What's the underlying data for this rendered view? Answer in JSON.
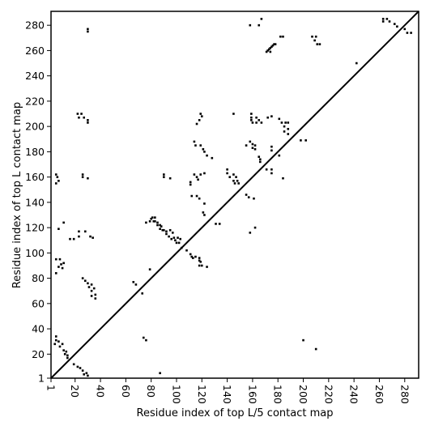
{
  "chart_data": {
    "type": "scatter",
    "title": "",
    "xlabel": "Residue index of top L/5 contact map",
    "ylabel": "Residue index of top L contact map",
    "xlim": [
      1,
      291
    ],
    "ylim": [
      1,
      291
    ],
    "x_ticks": [
      1,
      20,
      40,
      60,
      80,
      100,
      120,
      140,
      160,
      180,
      200,
      220,
      240,
      260,
      280
    ],
    "y_ticks": [
      1,
      20,
      40,
      60,
      80,
      100,
      120,
      140,
      160,
      180,
      200,
      220,
      240,
      260,
      280
    ],
    "x_tick_rotation": -90,
    "grid": false,
    "legend": "none",
    "diagonal": [
      [
        1,
        1
      ],
      [
        291,
        291
      ]
    ],
    "marker": "square",
    "marker_color": "#000000",
    "points": [
      [
        30,
        277
      ],
      [
        30,
        275
      ],
      [
        158,
        280
      ],
      [
        165,
        280
      ],
      [
        167,
        285
      ],
      [
        182,
        271
      ],
      [
        184,
        271
      ],
      [
        207,
        271
      ],
      [
        210,
        271
      ],
      [
        209,
        268
      ],
      [
        211,
        265
      ],
      [
        213,
        265
      ],
      [
        242,
        250
      ],
      [
        263,
        285
      ],
      [
        266,
        285
      ],
      [
        263,
        283
      ],
      [
        268,
        283
      ],
      [
        272,
        281
      ],
      [
        274,
        279
      ],
      [
        280,
        277
      ],
      [
        282,
        274
      ],
      [
        285,
        274
      ],
      [
        171,
        259
      ],
      [
        172,
        260
      ],
      [
        173,
        261
      ],
      [
        174,
        262
      ],
      [
        175,
        263
      ],
      [
        176,
        264
      ],
      [
        177,
        265
      ],
      [
        178,
        265
      ],
      [
        174,
        259
      ],
      [
        22,
        210
      ],
      [
        25,
        210
      ],
      [
        23,
        207
      ],
      [
        27,
        207
      ],
      [
        30,
        205
      ],
      [
        30,
        203
      ],
      [
        119,
        210
      ],
      [
        120,
        208
      ],
      [
        118,
        205
      ],
      [
        116,
        202
      ],
      [
        145,
        210
      ],
      [
        159,
        210
      ],
      [
        159,
        207
      ],
      [
        159,
        205
      ],
      [
        160,
        203
      ],
      [
        163,
        207
      ],
      [
        165,
        205
      ],
      [
        163,
        203
      ],
      [
        167,
        203
      ],
      [
        172,
        207
      ],
      [
        175,
        208
      ],
      [
        181,
        206
      ],
      [
        183,
        203
      ],
      [
        186,
        203
      ],
      [
        188,
        203
      ],
      [
        185,
        200
      ],
      [
        188,
        198
      ],
      [
        185,
        196
      ],
      [
        188,
        194
      ],
      [
        198,
        189
      ],
      [
        202,
        189
      ],
      [
        114,
        188
      ],
      [
        115,
        185
      ],
      [
        119,
        185
      ],
      [
        121,
        182
      ],
      [
        122,
        180
      ],
      [
        124,
        177
      ],
      [
        128,
        175
      ],
      [
        155,
        185
      ],
      [
        158,
        188
      ],
      [
        160,
        186
      ],
      [
        160,
        183
      ],
      [
        162,
        185
      ],
      [
        162,
        182
      ],
      [
        165,
        176
      ],
      [
        166,
        174
      ],
      [
        166,
        172
      ],
      [
        175,
        184
      ],
      [
        175,
        181
      ],
      [
        181,
        177
      ],
      [
        5,
        162
      ],
      [
        6,
        160
      ],
      [
        7,
        157
      ],
      [
        5,
        155
      ],
      [
        26,
        162
      ],
      [
        26,
        160
      ],
      [
        30,
        159
      ],
      [
        90,
        162
      ],
      [
        90,
        160
      ],
      [
        95,
        159
      ],
      [
        111,
        156
      ],
      [
        111,
        154
      ],
      [
        114,
        162
      ],
      [
        116,
        160
      ],
      [
        117,
        158
      ],
      [
        119,
        162
      ],
      [
        122,
        163
      ],
      [
        140,
        166
      ],
      [
        140,
        163
      ],
      [
        142,
        160
      ],
      [
        145,
        162
      ],
      [
        147,
        160
      ],
      [
        145,
        157
      ],
      [
        146,
        155
      ],
      [
        148,
        157
      ],
      [
        149,
        155
      ],
      [
        171,
        166
      ],
      [
        175,
        166
      ],
      [
        175,
        163
      ],
      [
        184,
        159
      ],
      [
        112,
        145
      ],
      [
        116,
        145
      ],
      [
        118,
        143
      ],
      [
        122,
        139
      ],
      [
        121,
        132
      ],
      [
        122,
        130
      ],
      [
        131,
        123
      ],
      [
        134,
        123
      ],
      [
        155,
        146
      ],
      [
        157,
        144
      ],
      [
        161,
        143
      ],
      [
        158,
        116
      ],
      [
        162,
        120
      ],
      [
        11,
        124
      ],
      [
        76,
        124
      ],
      [
        80,
        127
      ],
      [
        81,
        128
      ],
      [
        83,
        128
      ],
      [
        79,
        125
      ],
      [
        82,
        125
      ],
      [
        83,
        125
      ],
      [
        85,
        124
      ],
      [
        85,
        122
      ],
      [
        87,
        122
      ],
      [
        88,
        121
      ],
      [
        87,
        119
      ],
      [
        89,
        118
      ],
      [
        90,
        118
      ],
      [
        92,
        117
      ],
      [
        92,
        115
      ],
      [
        95,
        118
      ],
      [
        97,
        116
      ],
      [
        94,
        113
      ],
      [
        96,
        111
      ],
      [
        98,
        112
      ],
      [
        99,
        110
      ],
      [
        101,
        112
      ],
      [
        103,
        111
      ],
      [
        100,
        108
      ],
      [
        102,
        108
      ],
      [
        104,
        104
      ],
      [
        108,
        102
      ],
      [
        111,
        99
      ],
      [
        112,
        97
      ],
      [
        113,
        96
      ],
      [
        115,
        97
      ],
      [
        118,
        96
      ],
      [
        118,
        94
      ],
      [
        119,
        93
      ],
      [
        118,
        90
      ],
      [
        120,
        90
      ],
      [
        124,
        89
      ],
      [
        7,
        119
      ],
      [
        16,
        111
      ],
      [
        19,
        111
      ],
      [
        23,
        117
      ],
      [
        23,
        113
      ],
      [
        28,
        117
      ],
      [
        32,
        113
      ],
      [
        34,
        112
      ],
      [
        5,
        95
      ],
      [
        8,
        95
      ],
      [
        9,
        91
      ],
      [
        7,
        89
      ],
      [
        10,
        88
      ],
      [
        11,
        92
      ],
      [
        5,
        84
      ],
      [
        26,
        80
      ],
      [
        28,
        78
      ],
      [
        30,
        76
      ],
      [
        31,
        73
      ],
      [
        33,
        75
      ],
      [
        33,
        70
      ],
      [
        35,
        72
      ],
      [
        33,
        66
      ],
      [
        36,
        67
      ],
      [
        36,
        64
      ],
      [
        66,
        77
      ],
      [
        68,
        75
      ],
      [
        73,
        68
      ],
      [
        79,
        87
      ],
      [
        74,
        33
      ],
      [
        76,
        31
      ],
      [
        5,
        34
      ],
      [
        5,
        31
      ],
      [
        4,
        28
      ],
      [
        7,
        30
      ],
      [
        8,
        26
      ],
      [
        10,
        28
      ],
      [
        11,
        23
      ],
      [
        13,
        22
      ],
      [
        12,
        20
      ],
      [
        14,
        19
      ],
      [
        14,
        17
      ],
      [
        19,
        12
      ],
      [
        22,
        10
      ],
      [
        24,
        9
      ],
      [
        26,
        7
      ],
      [
        29,
        5
      ],
      [
        27,
        4
      ],
      [
        30,
        3
      ],
      [
        87,
        5
      ],
      [
        200,
        31
      ],
      [
        210,
        24
      ]
    ]
  }
}
